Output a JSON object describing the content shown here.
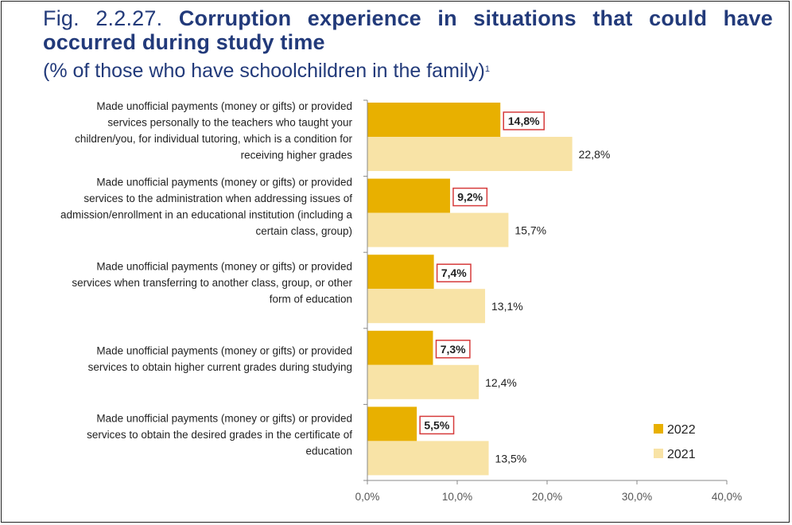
{
  "figure": {
    "number": "Fig. 2.2.27.",
    "title": "Corruption experience in situations that could have occurred during study time",
    "subtitle": "(% of those who have schoolchildren in the family)",
    "footnote_marker": "1"
  },
  "colors": {
    "series_2022": "#e8b000",
    "series_2021": "#f8e3a6",
    "highlight_border": "#d63b3b",
    "axis": "#888888",
    "title": "#223a7a"
  },
  "chart_data": {
    "type": "bar",
    "orientation": "horizontal",
    "title": "Corruption experience in situations that could have occurred during study time",
    "subtitle": "(% of those who have schoolchildren in the family)",
    "categories": [
      {
        "lines": [
          "Made unofficial payments (money or gifts) or provided",
          "services personally to the teachers who taught your",
          "children/you, for individual tutoring, which is a condition for",
          "receiving higher grades"
        ]
      },
      {
        "lines": [
          "Made unofficial payments (money or gifts) or provided",
          "services to the administration when addressing issues of",
          "admission/enrollment in an educational institution (including a",
          "certain class, group)"
        ]
      },
      {
        "lines": [
          "Made unofficial payments (money or gifts) or provided",
          "services when transferring to another class, group, or other",
          "form of education"
        ]
      },
      {
        "lines": [
          "Made unofficial payments (money or gifts) or provided",
          "services to obtain higher current grades during studying"
        ]
      },
      {
        "lines": [
          "Made unofficial payments (money or gifts) or provided",
          "services to obtain the desired grades in the certificate of",
          "education"
        ]
      }
    ],
    "series": [
      {
        "name": "2022",
        "values": [
          14.8,
          9.2,
          7.4,
          7.3,
          5.5
        ],
        "labels": [
          "14,8%",
          "9,2%",
          "7,4%",
          "7,3%",
          "5,5%"
        ],
        "highlighted": true
      },
      {
        "name": "2021",
        "values": [
          22.8,
          15.7,
          13.1,
          12.4,
          13.5
        ],
        "labels": [
          "22,8%",
          "15,7%",
          "13,1%",
          "12,4%",
          "13,5%"
        ],
        "highlighted": false
      }
    ],
    "xlim": [
      0,
      40
    ],
    "xticks": [
      0,
      10,
      20,
      30,
      40
    ],
    "xtick_labels": [
      "0,0%",
      "10,0%",
      "20,0%",
      "30,0%",
      "40,0%"
    ],
    "legend_position": "bottom-right",
    "grid": false
  }
}
